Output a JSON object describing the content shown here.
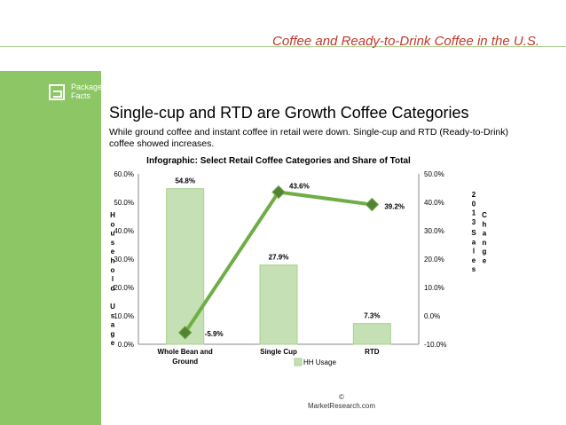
{
  "page": {
    "header": "Coffee and Ready-to-Drink Coffee in the U.S.",
    "logo_lines": [
      "Packaged",
      "Facts"
    ],
    "headline": "Single-cup and RTD are Growth Coffee Categories",
    "subtext": "While ground coffee and instant coffee in retail were down. Single-cup and RTD (Ready-to-Drink) coffee showed increases.",
    "footer_copyright": "©",
    "footer_source": "MarketResearch.com"
  },
  "colors": {
    "sidebar": "#8cc665",
    "bar_fill": "#c5e0b4",
    "bar_stroke": "#a9d18e",
    "line": "#70ad47",
    "marker": "#548235",
    "header_text": "#c0392b"
  },
  "chart_data": {
    "type": "bar",
    "title": "Infographic: Select Retail Coffee Categories and Share of Total",
    "categories": [
      "Whole Bean and Ground",
      "Single Cup",
      "RTD"
    ],
    "ylabel": "Household Usage",
    "ylabel_right": "2013 Sales Change",
    "ylim": [
      0,
      60
    ],
    "ylim_right": [
      -10,
      50
    ],
    "yticks": [
      "0.0%",
      "10.0%",
      "20.0%",
      "30.0%",
      "40.0%",
      "50.0%",
      "60.0%"
    ],
    "yticks_right": [
      "-10.0%",
      "0.0%",
      "10.0%",
      "20.0%",
      "30.0%",
      "40.0%",
      "50.0%"
    ],
    "legend": "bottom",
    "grid": false,
    "series": [
      {
        "name": "HH Usage",
        "type": "bar",
        "axis": "left",
        "values": [
          54.8,
          27.9,
          7.3
        ],
        "labels": [
          "54.8%",
          "27.9%",
          "7.3%"
        ]
      },
      {
        "type": "line",
        "axis": "right",
        "values": [
          -5.9,
          43.6,
          39.2
        ],
        "labels": [
          "-5.9%",
          "43.6%",
          "39.2%"
        ]
      }
    ]
  }
}
